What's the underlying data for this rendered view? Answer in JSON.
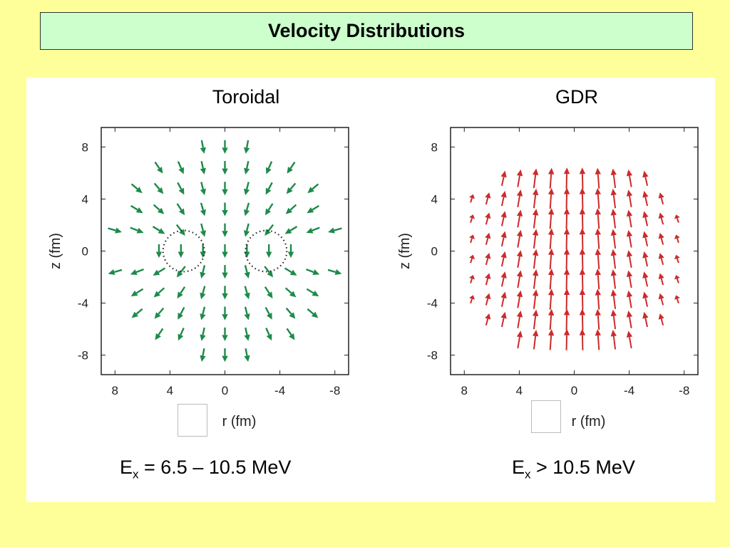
{
  "slide": {
    "title": "Velocity Distributions",
    "left_caption": {
      "main": "E",
      "sub": "x",
      "rest": " = 6.5 – 10.5 MeV"
    },
    "right_caption": {
      "main": "E",
      "sub": "x",
      "rest": " > 10.5 MeV"
    }
  },
  "colors": {
    "toroidal": "#1e8a4a",
    "gdr": "#cc2b2b",
    "background": "#ffff99",
    "title_box": "#ccffcc"
  },
  "chart_data": [
    {
      "type": "vector-field",
      "title": "Toroidal",
      "xlabel": "r (fm)",
      "ylabel": "z (fm)",
      "xlim": [
        9,
        -9
      ],
      "ylim": [
        -9.5,
        9.5
      ],
      "xticks": [
        "8",
        "4",
        "0",
        "-4",
        "-8"
      ],
      "yticks": [
        "8",
        "4",
        "0",
        "-4",
        "-8"
      ],
      "xtick_values": [
        8,
        4,
        0,
        -4,
        -8
      ],
      "ytick_values": [
        8,
        4,
        0,
        -4,
        -8
      ],
      "grid": false,
      "field": "toroidal",
      "vortex_centers": [
        [
          3,
          0
        ],
        [
          -3,
          0
        ]
      ],
      "vortex_radius": 1.5,
      "color": "#1e8a4a"
    },
    {
      "type": "vector-field",
      "title": "GDR",
      "xlabel": "r (fm)",
      "ylabel": "z (fm)",
      "xlim": [
        9,
        -9
      ],
      "ylim": [
        -9.5,
        9.5
      ],
      "xticks": [
        "8",
        "4",
        "0",
        "-4",
        "-8"
      ],
      "yticks": [
        "8",
        "4",
        "0",
        "-4",
        "-8"
      ],
      "xtick_values": [
        8,
        4,
        0,
        -4,
        -8
      ],
      "ytick_values": [
        8,
        4,
        0,
        -4,
        -8
      ],
      "grid": false,
      "field": "dipole",
      "color": "#cc2b2b"
    }
  ]
}
